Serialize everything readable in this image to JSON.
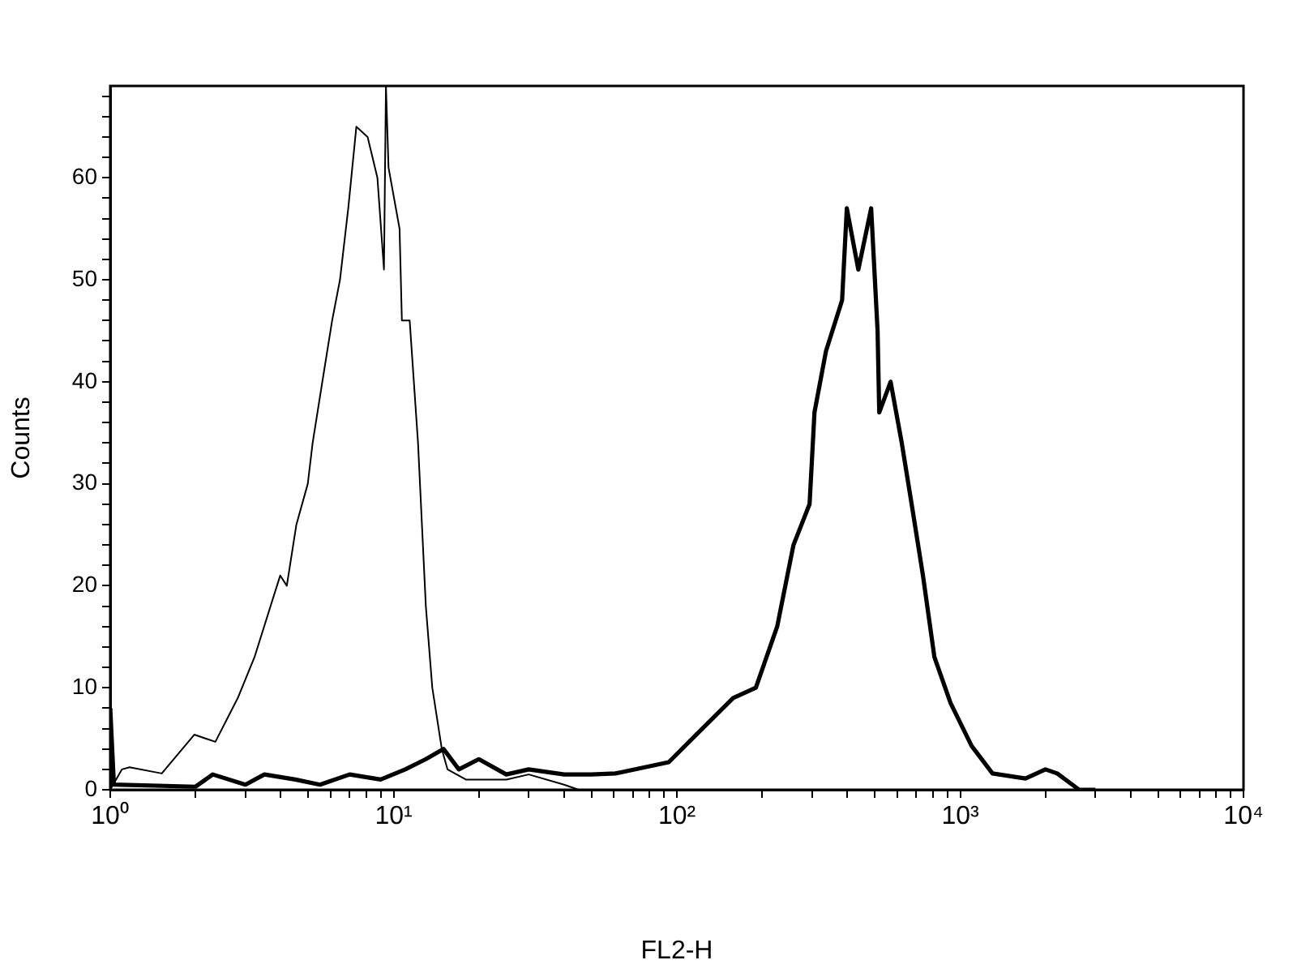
{
  "chart_data": {
    "type": "line",
    "xlabel": "FL2-H",
    "ylabel": "Counts",
    "log": "x",
    "xlim": [
      1,
      10000
    ],
    "ylim": [
      0,
      69
    ],
    "xticks": [
      {
        "value": 1,
        "label": "10⁰"
      },
      {
        "value": 2,
        "label": null
      },
      {
        "value": 3,
        "label": null
      },
      {
        "value": 4,
        "label": null
      },
      {
        "value": 5,
        "label": null
      },
      {
        "value": 6,
        "label": null
      },
      {
        "value": 7,
        "label": null
      },
      {
        "value": 8,
        "label": null
      },
      {
        "value": 9,
        "label": null
      },
      {
        "value": 10,
        "label": "10¹"
      },
      {
        "value": 20,
        "label": null
      },
      {
        "value": 30,
        "label": null
      },
      {
        "value": 40,
        "label": null
      },
      {
        "value": 50,
        "label": null
      },
      {
        "value": 60,
        "label": null
      },
      {
        "value": 70,
        "label": null
      },
      {
        "value": 80,
        "label": null
      },
      {
        "value": 90,
        "label": null
      },
      {
        "value": 100,
        "label": "10²"
      },
      {
        "value": 200,
        "label": null
      },
      {
        "value": 300,
        "label": null
      },
      {
        "value": 400,
        "label": null
      },
      {
        "value": 500,
        "label": null
      },
      {
        "value": 600,
        "label": null
      },
      {
        "value": 700,
        "label": null
      },
      {
        "value": 800,
        "label": null
      },
      {
        "value": 900,
        "label": null
      },
      {
        "value": 1000,
        "label": "10³"
      },
      {
        "value": 2000,
        "label": null
      },
      {
        "value": 3000,
        "label": null
      },
      {
        "value": 4000,
        "label": null
      },
      {
        "value": 5000,
        "label": null
      },
      {
        "value": 6000,
        "label": null
      },
      {
        "value": 7000,
        "label": null
      },
      {
        "value": 8000,
        "label": null
      },
      {
        "value": 9000,
        "label": null
      },
      {
        "value": 10000,
        "label": "10⁴"
      }
    ],
    "yticks": [
      0,
      {
        "value": 2,
        "label": null
      },
      {
        "value": 4,
        "label": null
      },
      {
        "value": 6,
        "label": null
      },
      {
        "value": 8,
        "label": null
      },
      10,
      {
        "value": 12,
        "label": null
      },
      {
        "value": 14,
        "label": null
      },
      {
        "value": 16,
        "label": null
      },
      {
        "value": 18,
        "label": null
      },
      20,
      {
        "value": 22,
        "label": null
      },
      {
        "value": 24,
        "label": null
      },
      {
        "value": 26,
        "label": null
      },
      {
        "value": 28,
        "label": null
      },
      30,
      {
        "value": 32,
        "label": null
      },
      {
        "value": 34,
        "label": null
      },
      {
        "value": 36,
        "label": null
      },
      {
        "value": 38,
        "label": null
      },
      40,
      {
        "value": 42,
        "label": null
      },
      {
        "value": 44,
        "label": null
      },
      {
        "value": 46,
        "label": null
      },
      {
        "value": 48,
        "label": null
      },
      50,
      {
        "value": 52,
        "label": null
      },
      {
        "value": 54,
        "label": null
      },
      {
        "value": 56,
        "label": null
      },
      {
        "value": 58,
        "label": null
      },
      60,
      {
        "value": 62,
        "label": null
      },
      {
        "value": 64,
        "label": null
      },
      {
        "value": 66,
        "label": null
      },
      {
        "value": 68,
        "label": null
      }
    ],
    "grid": false,
    "legend": false,
    "marker": "none",
    "line_style": "solid",
    "series": [
      {
        "color": "#000000",
        "x": [
          1,
          1.1,
          1.17,
          1.52,
          1.98,
          2.35,
          2.82,
          3.23,
          3.68,
          3.98,
          4.2,
          4.54,
          4.98,
          5.18,
          5.68,
          6.07,
          6.47,
          6.92,
          7.39,
          8.1,
          8.77,
          9.25,
          9.4,
          9.6,
          10.5,
          10.7,
          11.4,
          12.2,
          13,
          13.7,
          14.8,
          15.5,
          18,
          25,
          30,
          40,
          45
        ],
        "values": [
          0,
          2,
          2.2,
          1.6,
          5.4,
          4.7,
          9,
          13,
          18,
          21,
          20,
          26,
          30,
          34,
          41,
          46,
          50,
          57,
          65,
          64,
          60,
          51,
          69,
          61,
          55,
          46,
          46,
          34,
          18,
          10,
          4,
          2,
          1,
          1,
          1.5,
          0.5,
          0
        ]
      },
      {
        "color": "#000000",
        "x": [
          1,
          1.03,
          2,
          2.3,
          3,
          3.5,
          4.5,
          5.5,
          7,
          9,
          11,
          13,
          15,
          17,
          20,
          25,
          30,
          40,
          50,
          60.7,
          93.6,
          117,
          158,
          190,
          226,
          258,
          294,
          306,
          336,
          383,
          398,
          437,
          485,
          511,
          518,
          568,
          622,
          674,
          739,
          811,
          925,
          1097,
          1300,
          1700,
          2000,
          2200,
          2630,
          3000
        ],
        "values": [
          8,
          0.5,
          0.3,
          1.5,
          0.5,
          1.5,
          1,
          0.5,
          1.5,
          1,
          2,
          3,
          4,
          2,
          3,
          1.5,
          2,
          1.5,
          1.5,
          1.6,
          2.7,
          5.4,
          9,
          10,
          16,
          24,
          28,
          37,
          43,
          48,
          57,
          51,
          57,
          45,
          37,
          40,
          34,
          28,
          21,
          13,
          8.5,
          4.3,
          1.6,
          1.1,
          2,
          1.6,
          0,
          0
        ]
      }
    ]
  }
}
